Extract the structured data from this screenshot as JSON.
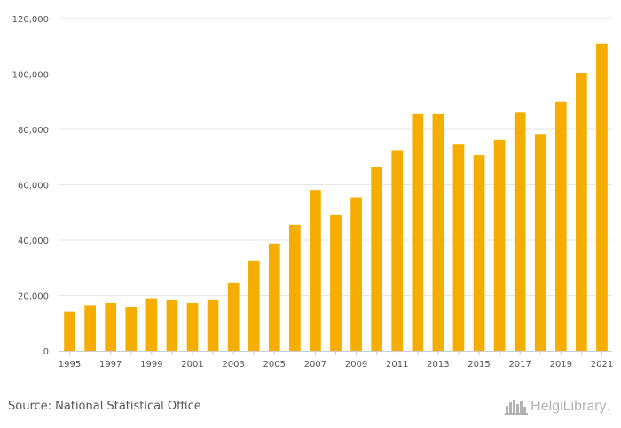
{
  "chart_data": {
    "type": "bar",
    "title": "",
    "xlabel": "",
    "ylabel": "",
    "ylim": [
      0,
      120000
    ],
    "yticks": [
      0,
      20000,
      40000,
      60000,
      80000,
      100000,
      120000
    ],
    "ytick_labels": [
      "0",
      "20,000",
      "40,000",
      "60,000",
      "80,000",
      "100,000",
      "120,000"
    ],
    "categories": [
      "1995",
      "1996",
      "1997",
      "1998",
      "1999",
      "2000",
      "2001",
      "2002",
      "2003",
      "2004",
      "2005",
      "2006",
      "2007",
      "2008",
      "2009",
      "2010",
      "2011",
      "2012",
      "2013",
      "2014",
      "2015",
      "2016",
      "2017",
      "2018",
      "2019",
      "2020",
      "2021"
    ],
    "xtick_labels_shown": [
      "1995",
      "1997",
      "1999",
      "2001",
      "2003",
      "2005",
      "2007",
      "2009",
      "2011",
      "2013",
      "2015",
      "2017",
      "2019",
      "2021"
    ],
    "values": [
      14200,
      16500,
      17300,
      15800,
      19000,
      18400,
      17300,
      18600,
      24700,
      32700,
      38800,
      45500,
      58200,
      49000,
      55500,
      66500,
      72500,
      85500,
      85500,
      74500,
      70700,
      76200,
      86300,
      78300,
      90000,
      100500,
      110800
    ],
    "bar_color": "#f5ae00",
    "grid": true
  },
  "footer": {
    "source": "Source: National Statistical Office",
    "logo_text": "HelgiLibrary",
    "logo_suffix": ".",
    "logo_icon": "city-skyline-icon"
  }
}
